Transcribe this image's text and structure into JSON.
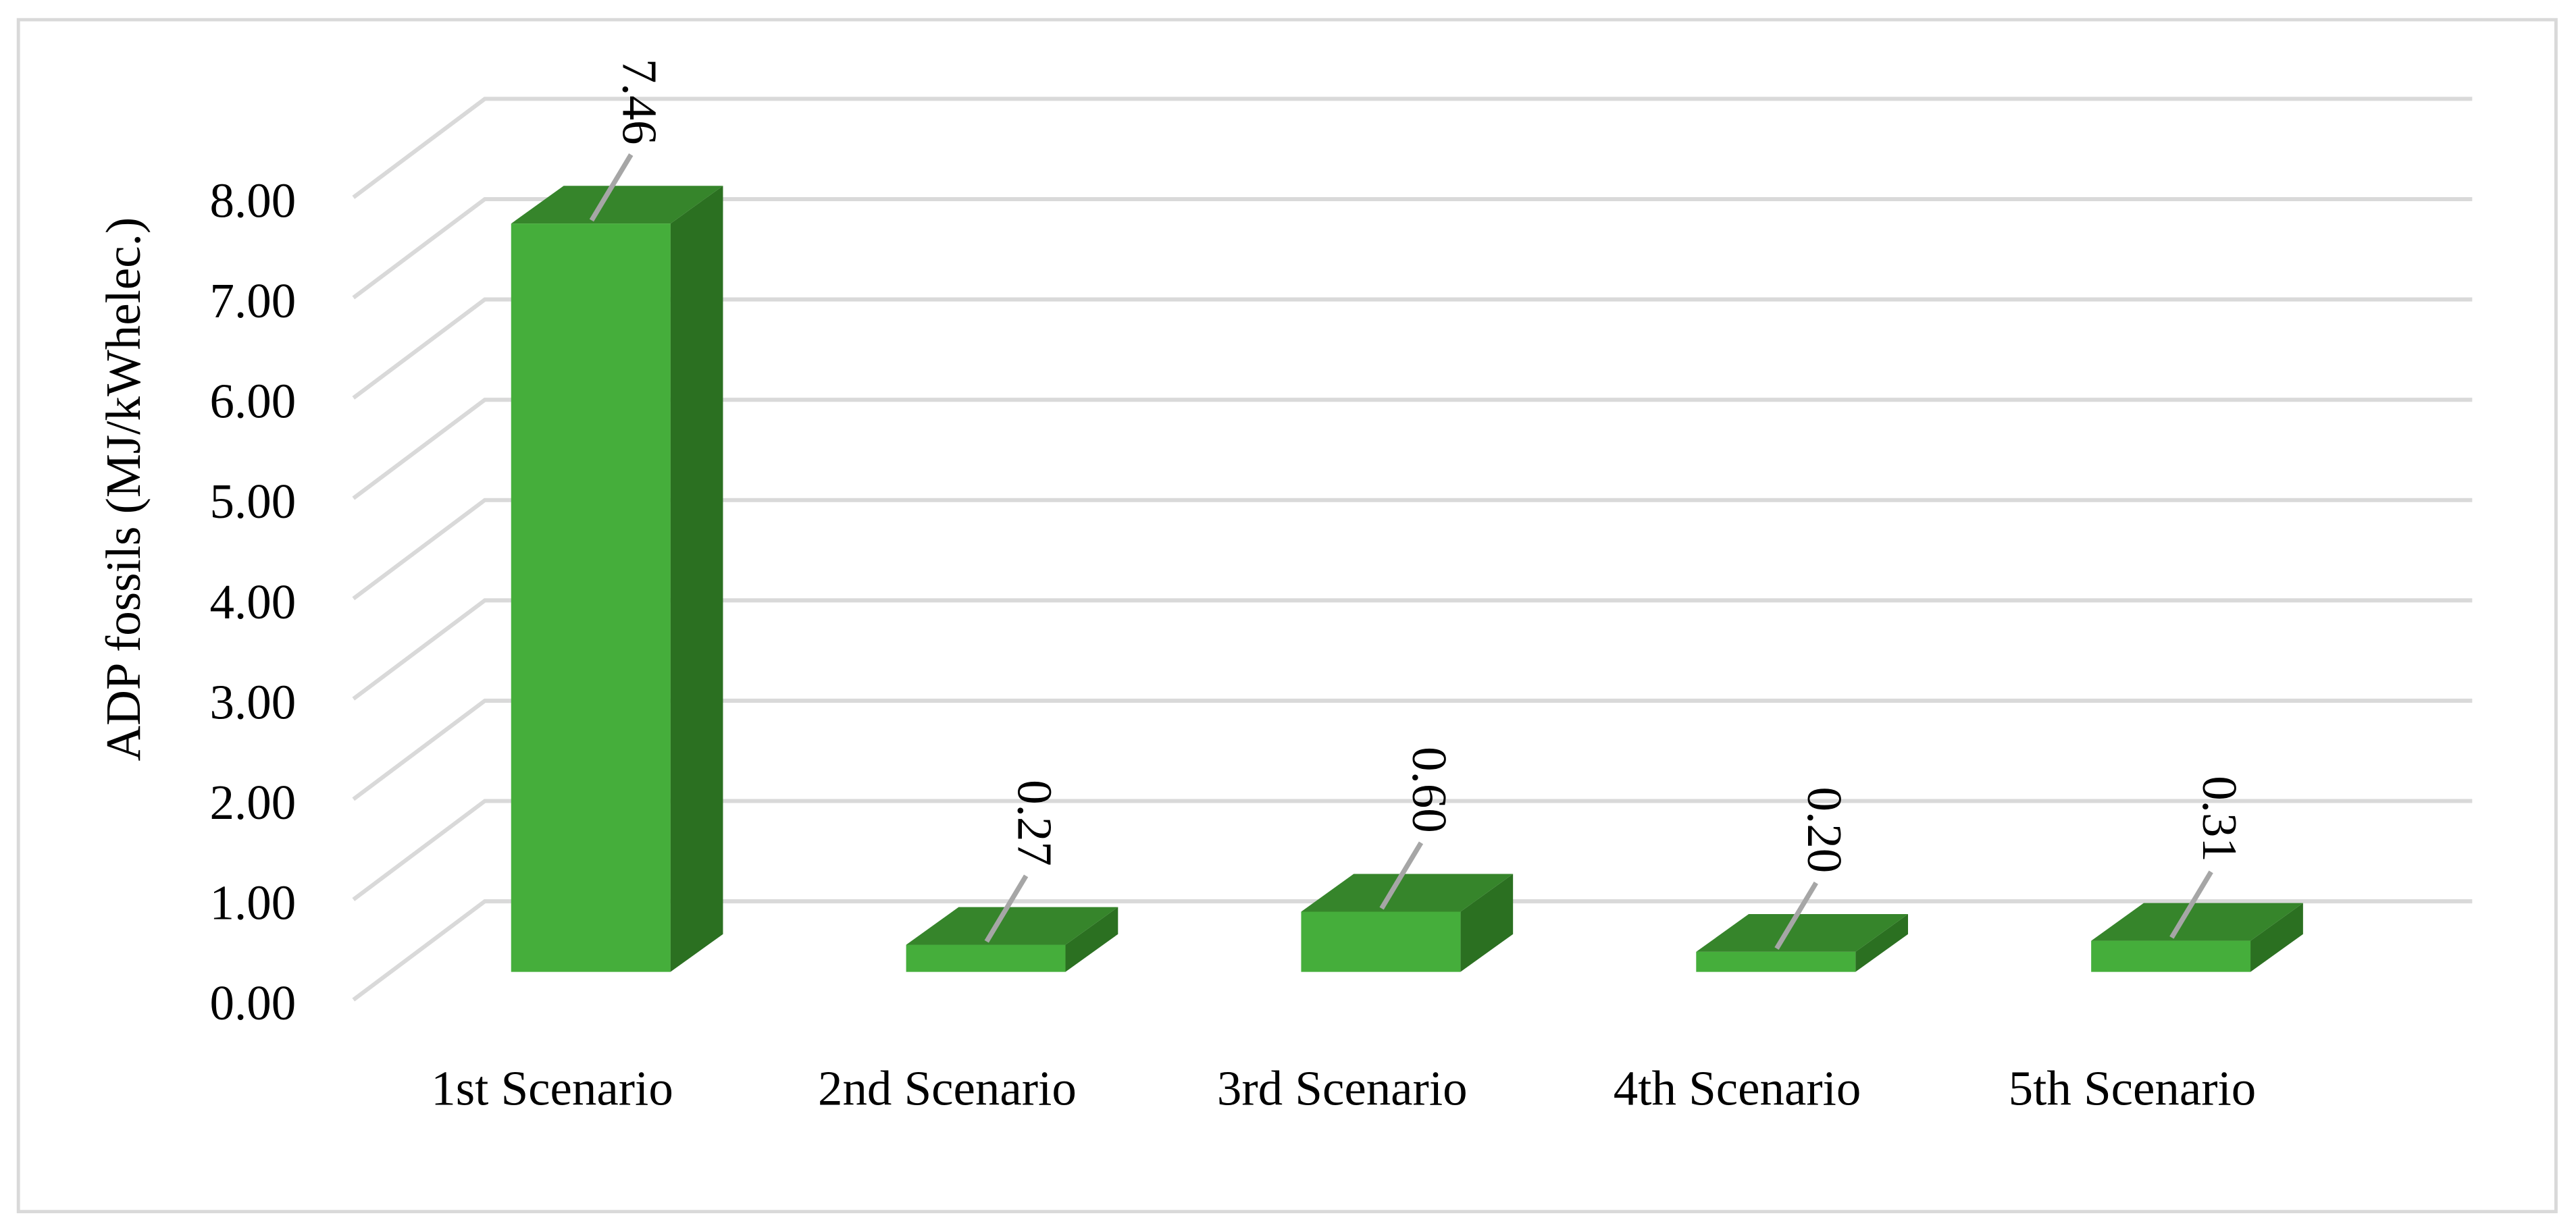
{
  "chart_data": {
    "type": "bar",
    "style": "3d-column",
    "title": "",
    "xlabel": "",
    "ylabel": "ADP fossils (MJ/kWhelec.)",
    "categories": [
      "1st Scenario",
      "2nd Scenario",
      "3rd Scenario",
      "4th Scenario",
      "5th Scenario"
    ],
    "values": [
      7.46,
      0.27,
      0.6,
      0.2,
      0.31
    ],
    "data_labels": [
      "7.46",
      "0.27",
      "0.60",
      "0.20",
      "0.31"
    ],
    "ylim": [
      0,
      8
    ],
    "yticks": [
      "0.00",
      "1.00",
      "2.00",
      "3.00",
      "4.00",
      "5.00",
      "6.00",
      "7.00",
      "8.00"
    ],
    "grid": true,
    "legend": "none",
    "colors": {
      "bar_front": "#45AE3B",
      "bar_top": "#36852B",
      "bar_side": "#2B7021",
      "grid": "#D9D9D9",
      "leader": "#A6A6A6",
      "border": "#D9D9D9"
    }
  }
}
